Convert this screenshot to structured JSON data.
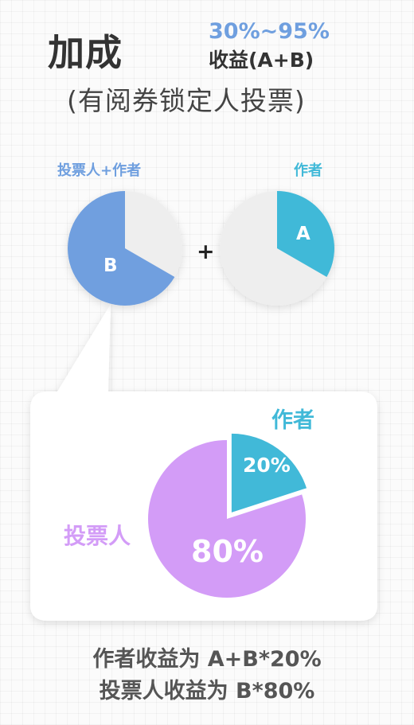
{
  "header": {
    "title": "加成",
    "range": "30%~95%",
    "formula": "收益(A+B)",
    "note": "(有阅券锁定人投票)"
  },
  "pies": {
    "left_label": "投票人+作者",
    "right_label": "作者",
    "left_slice_text": "B",
    "right_slice_text": "A",
    "plus": "+"
  },
  "callout": {
    "author_label": "作者",
    "voter_label": "投票人",
    "author_share": "20%",
    "voter_share": "80%"
  },
  "chart_data": {
    "type": "pie",
    "categories": [
      "作者",
      "投票人"
    ],
    "values": [
      20,
      80
    ],
    "title": ""
  },
  "footer": {
    "line1": "作者收益为 A+B*20%",
    "line2": "投票人收益为 B*80%"
  },
  "colors": {
    "blue": "#6f9fdf",
    "teal": "#41b9d8",
    "purple": "#d39cf7",
    "gray": "#eeeeee",
    "text": "#333333"
  }
}
